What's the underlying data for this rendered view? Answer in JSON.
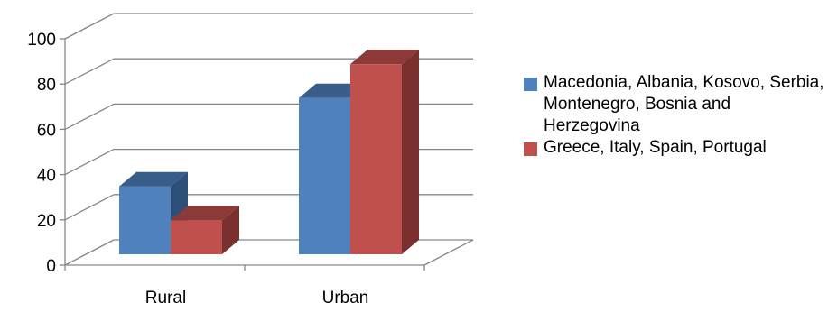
{
  "chart_data": {
    "type": "bar",
    "style": "3d-clustered-column",
    "categories": [
      "Rural",
      "Urban"
    ],
    "series": [
      {
        "name": "Macedonia, Albania, Kosovo, Serbia, Montenegro, Bosnia and Herzegovina",
        "values": [
          30,
          69
        ],
        "color": "#4f81bd",
        "dark_color": "#385d8a",
        "side_color": "#2e4f78"
      },
      {
        "name": "Greece, Italy, Spain, Portugal",
        "values": [
          15,
          84
        ],
        "color": "#c0504d",
        "dark_color": "#8c3a38",
        "side_color": "#7a302e"
      }
    ],
    "ylim": [
      0,
      100
    ],
    "yticks": [
      "0",
      "20",
      "40",
      "60",
      "80",
      "100"
    ],
    "grid": true,
    "legend_position": "right",
    "title": "",
    "xlabel": "",
    "ylabel": ""
  }
}
